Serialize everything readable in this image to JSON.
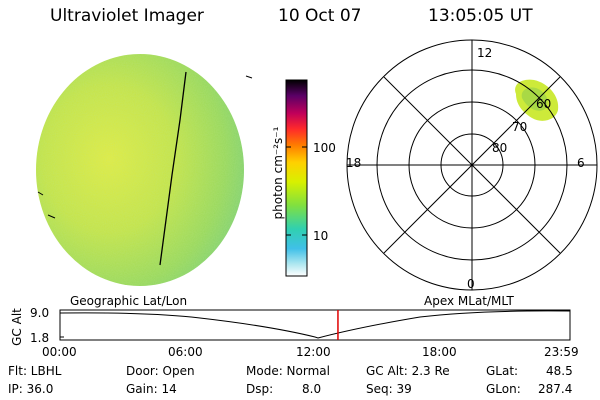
{
  "header": {
    "instrument": "Ultraviolet Imager",
    "date": "10 Oct 07",
    "time": "13:05:05 UT"
  },
  "colorbar": {
    "unit_label": "photon cm⁻²s⁻¹",
    "ticks": [
      "100",
      "10"
    ],
    "colors": [
      "#000000",
      "#5a0066",
      "#c0005a",
      "#ff2a2a",
      "#ff7a00",
      "#ffd000",
      "#d8f000",
      "#80e040",
      "#30d0b0",
      "#40c0e8",
      "#b0e8f0",
      "#ffffff"
    ]
  },
  "polar": {
    "mlt_labels": {
      "top": "12",
      "left": "18",
      "right": "6",
      "bottom": "0"
    },
    "lat_labels": [
      "60",
      "70",
      "80"
    ]
  },
  "timeline": {
    "left_title": "Geographic Lat/Lon",
    "right_title": "Apex MLat/MLT",
    "y_axis_label": "GC Alt",
    "y_ticks": [
      "9.0",
      "1.8"
    ],
    "x_ticks": [
      "00:00",
      "06:00",
      "12:00",
      "18:00",
      "23:59"
    ],
    "current_time_fraction": 0.545
  },
  "status": {
    "flt": "Flt: LBHL",
    "ip": "IP: 36.0",
    "door": "Door: Open",
    "gain": "Gain: 14",
    "mode": "Mode: Normal",
    "dsp": "Dsp:",
    "dsp_value": "8.0",
    "gc_alt": "GC Alt: 2.3 Re",
    "seq": "Seq: 39",
    "glat": "GLat:",
    "glat_value": "48.5",
    "glon": "GLon:",
    "glon_value": "287.4"
  }
}
